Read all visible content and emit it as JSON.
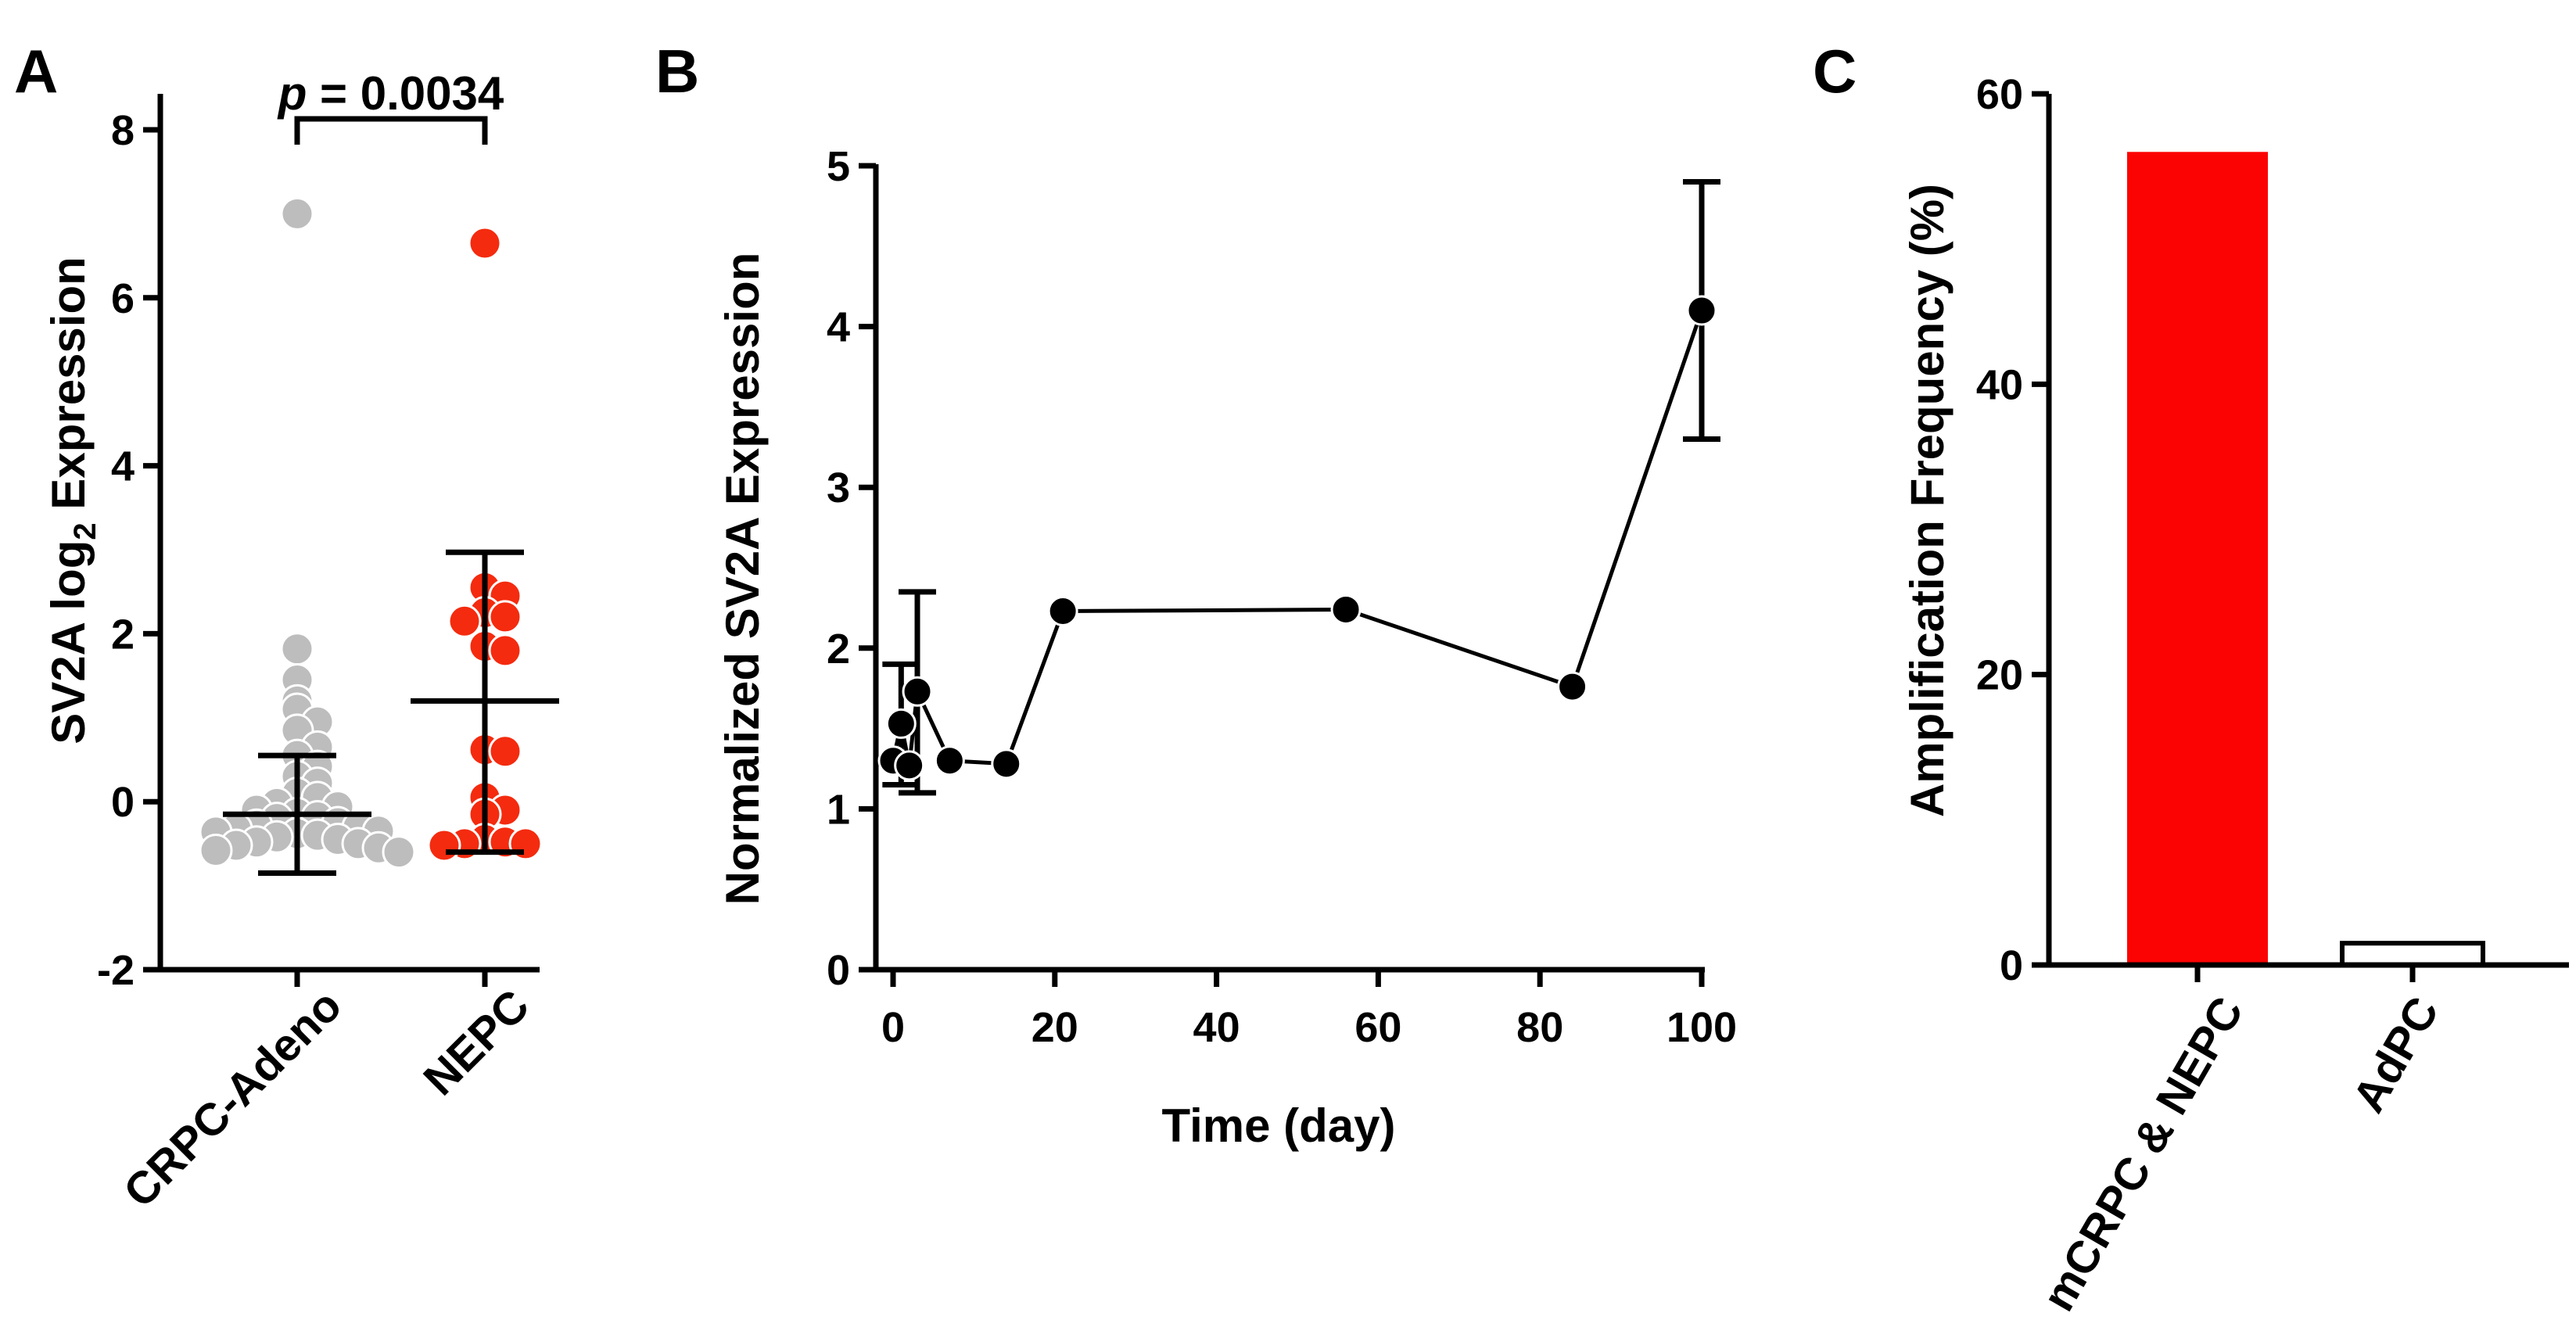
{
  "chart_data": [
    {
      "panel": "A",
      "type": "scatter",
      "ylabel_main": "SV2A log",
      "ylabel_sub": "2",
      "ylabel_tail": " Expression",
      "yticks": [
        8,
        6,
        4,
        2,
        0,
        -2
      ],
      "ylim": [
        -2,
        8
      ],
      "categories": [
        "CRPC-Adeno",
        "NEPC"
      ],
      "annotation": {
        "p_symbol": "p",
        "p_text": " = 0.0034"
      },
      "colors": {
        "CRPC-Adeno": "#bdbdbd",
        "NEPC": "#f42b0f"
      },
      "groups": [
        {
          "name": "CRPC-Adeno",
          "mean": -0.15,
          "sd_upper": 0.55,
          "sd_lower": -0.85,
          "points": [
            7.0,
            1.82,
            1.45,
            1.2,
            1.1,
            0.95,
            0.85,
            0.65,
            0.55,
            0.42,
            0.3,
            0.22,
            0.1,
            0.05,
            -0.02,
            -0.06,
            -0.1,
            -0.14,
            -0.18,
            -0.2,
            -0.25,
            -0.28,
            -0.3,
            -0.32,
            -0.35,
            -0.36,
            -0.38,
            -0.4,
            -0.42,
            -0.45,
            -0.48,
            -0.5,
            -0.52,
            -0.55,
            -0.58,
            -0.6
          ]
        },
        {
          "name": "NEPC",
          "mean": 1.2,
          "sd_upper": 2.97,
          "sd_lower": -0.6,
          "points": [
            6.65,
            2.55,
            2.45,
            2.25,
            2.2,
            2.15,
            1.85,
            1.8,
            0.62,
            0.6,
            0.05,
            -0.1,
            -0.15,
            -0.45,
            -0.48,
            -0.5,
            -0.5,
            -0.52
          ]
        }
      ]
    },
    {
      "panel": "B",
      "type": "line",
      "title": "",
      "xlabel": "Time (day)",
      "ylabel": "Normalized SV2A Expression",
      "xlim": [
        0,
        100
      ],
      "ylim": [
        0,
        5
      ],
      "xticks": [
        0,
        20,
        40,
        60,
        80,
        100
      ],
      "yticks": [
        0,
        1,
        2,
        3,
        4,
        5
      ],
      "series": [
        {
          "name": "SV2A",
          "x": [
            0,
            1,
            2,
            3,
            7,
            14,
            21,
            56,
            84,
            100
          ],
          "y": [
            1.3,
            1.53,
            1.27,
            1.73,
            1.3,
            1.28,
            2.23,
            2.24,
            1.76,
            4.1
          ],
          "err_upper": [
            null,
            1.9,
            null,
            2.35,
            null,
            null,
            null,
            null,
            null,
            4.9
          ],
          "err_lower": [
            null,
            1.15,
            null,
            1.1,
            null,
            null,
            null,
            null,
            null,
            3.3
          ]
        }
      ]
    },
    {
      "panel": "C",
      "type": "bar",
      "xlabel": "",
      "ylabel": "Amplification Frequency (%)",
      "ylim": [
        0,
        60
      ],
      "yticks": [
        0,
        20,
        40,
        60
      ],
      "categories": [
        "mCRPC & NEPC",
        "AdPC"
      ],
      "values": [
        56,
        1.5
      ],
      "colors": [
        "#fc0303",
        "#ffffff"
      ]
    }
  ]
}
